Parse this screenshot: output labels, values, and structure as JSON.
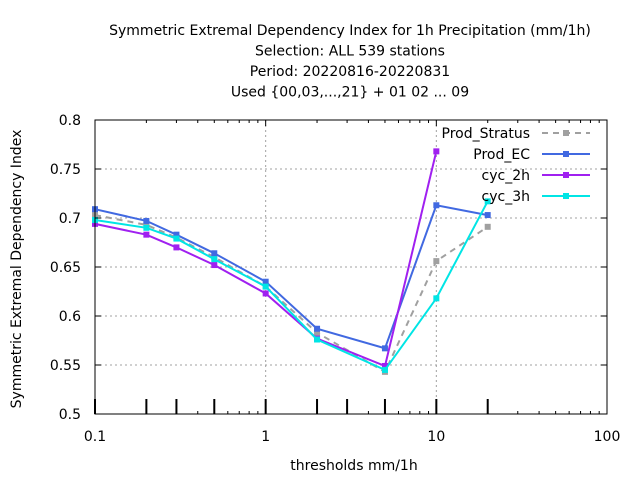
{
  "chart_data": {
    "type": "line",
    "title_lines": [
      "Symmetric Extremal Dependency Index  for 1h Precipitation (mm/1h)",
      "Selection: ALL    539 stations",
      "Period: 20220816-20220831",
      "Used {00,03,...,21} + 01 02 ... 09"
    ],
    "xlabel": "thresholds mm/1h",
    "ylabel": "Symmetric Extremal Dependency Index",
    "x_scale": "log",
    "xlim": [
      0.1,
      100
    ],
    "ylim": [
      0.5,
      0.8
    ],
    "x_ticks": [
      {
        "value": 0.1,
        "label": "0.1"
      },
      {
        "value": 1,
        "label": "1"
      },
      {
        "value": 10,
        "label": "10"
      },
      {
        "value": 100,
        "label": "100"
      }
    ],
    "y_ticks": [
      {
        "value": 0.5,
        "label": "0.5"
      },
      {
        "value": 0.55,
        "label": "0.55"
      },
      {
        "value": 0.6,
        "label": "0.6"
      },
      {
        "value": 0.65,
        "label": "0.65"
      },
      {
        "value": 0.7,
        "label": "0.7"
      },
      {
        "value": 0.75,
        "label": "0.75"
      },
      {
        "value": 0.8,
        "label": "0.8"
      }
    ],
    "grid": true,
    "legend_position": "top-right",
    "bottom_impulses_x": [
      0.1,
      0.2,
      0.3,
      0.5,
      1,
      2,
      3,
      5,
      10,
      20
    ],
    "series": [
      {
        "name": "Prod_Stratus",
        "color": "#a0a0a0",
        "dashed": true,
        "x": [
          0.1,
          0.2,
          0.3,
          0.5,
          1,
          2,
          5,
          10,
          20
        ],
        "y": [
          0.703,
          0.693,
          0.68,
          0.66,
          0.63,
          0.583,
          0.543,
          0.656,
          0.691
        ]
      },
      {
        "name": "Prod_EC",
        "color": "#4169e1",
        "dashed": false,
        "x": [
          0.1,
          0.2,
          0.3,
          0.5,
          1,
          2,
          5,
          10,
          20
        ],
        "y": [
          0.709,
          0.697,
          0.683,
          0.664,
          0.635,
          0.587,
          0.567,
          0.713,
          0.703
        ]
      },
      {
        "name": "cyc_2h",
        "color": "#a020f0",
        "dashed": false,
        "x": [
          0.1,
          0.2,
          0.3,
          0.5,
          1,
          2,
          5,
          10
        ],
        "y": [
          0.694,
          0.683,
          0.67,
          0.652,
          0.623,
          0.577,
          0.549,
          0.768
        ]
      },
      {
        "name": "cyc_3h",
        "color": "#00e5e5",
        "dashed": false,
        "x": [
          0.1,
          0.2,
          0.3,
          0.5,
          1,
          2,
          5,
          10,
          20
        ],
        "y": [
          0.698,
          0.69,
          0.679,
          0.658,
          0.63,
          0.576,
          0.545,
          0.618,
          0.717
        ]
      }
    ]
  }
}
